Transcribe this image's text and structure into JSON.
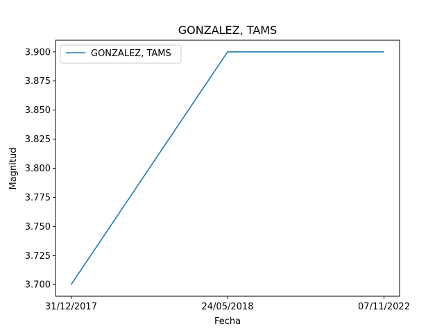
{
  "chart_data": {
    "type": "line",
    "title": "GONZALEZ, TAMS",
    "xlabel": "Fecha",
    "ylabel": "Magnitud",
    "categories": [
      "31/12/2017",
      "24/05/2018",
      "07/11/2022"
    ],
    "series": [
      {
        "name": "GONZALEZ, TAMS",
        "values": [
          3.7,
          3.9,
          3.9
        ],
        "color": "#1f77b4"
      }
    ],
    "ylim": [
      3.69,
      3.91
    ],
    "yticks": [
      3.7,
      3.725,
      3.75,
      3.775,
      3.8,
      3.825,
      3.85,
      3.875,
      3.9
    ],
    "ytick_labels": [
      "3.700",
      "3.725",
      "3.750",
      "3.775",
      "3.800",
      "3.825",
      "3.850",
      "3.875",
      "3.900"
    ],
    "grid": false,
    "legend_position": "top-left"
  }
}
